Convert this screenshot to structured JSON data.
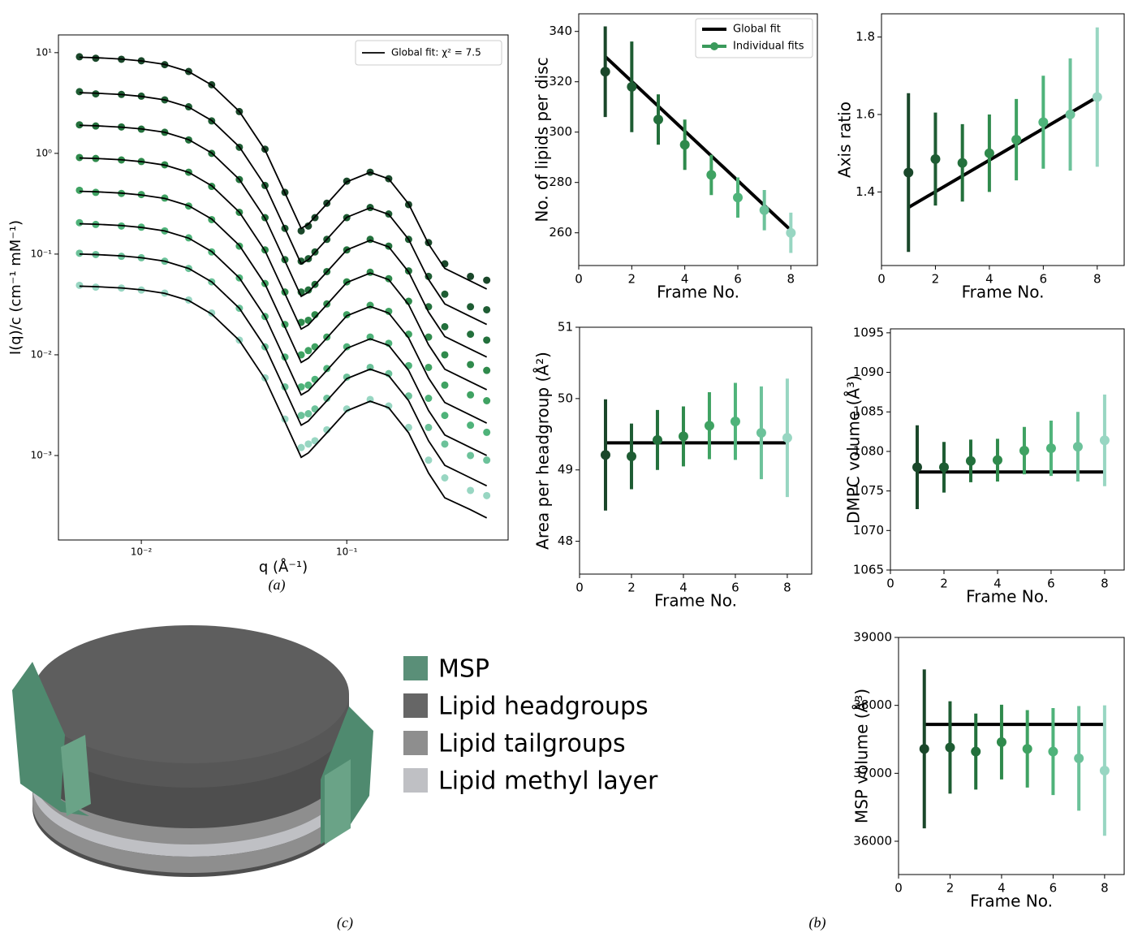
{
  "chart_data": [
    {
      "type": "saxs",
      "xlabel": "q (Å⁻¹)",
      "ylabel": "I(q)/c (cm⁻¹ mM⁻¹)",
      "xscale": "log",
      "yscale": "log",
      "xlim": [
        0.00395,
        0.61
      ],
      "ylim": [
        0.000145,
        15
      ],
      "xticks": [
        {
          "value": 0.01,
          "label": "10⁻²"
        },
        {
          "value": 0.1,
          "label": "10⁻¹"
        }
      ],
      "yticks": [
        {
          "value": 10,
          "label": "10¹"
        },
        {
          "value": 1,
          "label": "10⁰"
        },
        {
          "value": 0.1,
          "label": "10⁻¹"
        },
        {
          "value": 0.01,
          "label": "10⁻²"
        },
        {
          "value": 0.001,
          "label": "10⁻³"
        }
      ],
      "x": [
        0.005,
        0.006,
        0.008,
        0.01,
        0.013,
        0.017,
        0.022,
        0.03,
        0.04,
        0.05,
        0.06,
        0.065,
        0.07,
        0.08,
        0.1,
        0.13,
        0.16,
        0.2,
        0.25,
        0.3,
        0.4,
        0.48
      ],
      "series": [
        {
          "color": "#1a472a",
          "values": [
            9.1,
            8.8,
            8.6,
            8.3,
            7.6,
            6.5,
            4.8,
            2.6,
            1.1,
            0.41,
            0.17,
            0.19,
            0.23,
            0.32,
            0.53,
            0.65,
            0.56,
            0.31,
            0.13,
            0.08,
            0.06,
            0.055
          ]
        },
        {
          "color": "#1e5c33",
          "values": [
            4.1,
            3.9,
            3.85,
            3.7,
            3.4,
            2.9,
            2.1,
            1.15,
            0.48,
            0.18,
            0.085,
            0.09,
            0.105,
            0.14,
            0.23,
            0.29,
            0.25,
            0.14,
            0.06,
            0.04,
            0.03,
            0.028
          ]
        },
        {
          "color": "#23703c",
          "values": [
            1.92,
            1.87,
            1.83,
            1.74,
            1.62,
            1.36,
            1.0,
            0.55,
            0.23,
            0.088,
            0.042,
            0.044,
            0.05,
            0.067,
            0.11,
            0.14,
            0.12,
            0.068,
            0.03,
            0.019,
            0.016,
            0.014
          ]
        },
        {
          "color": "#2f8a4c",
          "values": [
            0.91,
            0.89,
            0.86,
            0.83,
            0.77,
            0.65,
            0.47,
            0.26,
            0.11,
            0.042,
            0.021,
            0.022,
            0.025,
            0.032,
            0.053,
            0.066,
            0.057,
            0.034,
            0.015,
            0.01,
            0.008,
            0.007
          ]
        },
        {
          "color": "#3fa262",
          "values": [
            0.43,
            0.41,
            0.4,
            0.39,
            0.36,
            0.3,
            0.22,
            0.12,
            0.051,
            0.02,
            0.01,
            0.011,
            0.012,
            0.015,
            0.025,
            0.031,
            0.027,
            0.016,
            0.0075,
            0.005,
            0.004,
            0.0035
          ]
        },
        {
          "color": "#4fb37a",
          "values": [
            0.205,
            0.197,
            0.19,
            0.185,
            0.17,
            0.145,
            0.105,
            0.058,
            0.024,
            0.0095,
            0.0048,
            0.005,
            0.0057,
            0.0073,
            0.012,
            0.015,
            0.013,
            0.0078,
            0.0037,
            0.0025,
            0.002,
            0.0017
          ]
        },
        {
          "color": "#6cc29a",
          "values": [
            0.102,
            0.099,
            0.095,
            0.092,
            0.085,
            0.072,
            0.053,
            0.029,
            0.012,
            0.0048,
            0.0025,
            0.0026,
            0.0029,
            0.0037,
            0.006,
            0.0075,
            0.0065,
            0.0039,
            0.0019,
            0.0013,
            0.001,
            0.0009
          ]
        },
        {
          "color": "#98d6c2",
          "values": [
            0.049,
            0.047,
            0.046,
            0.044,
            0.041,
            0.035,
            0.026,
            0.014,
            0.0059,
            0.0023,
            0.0012,
            0.0013,
            0.0014,
            0.0018,
            0.0029,
            0.0036,
            0.0031,
            0.0019,
            0.0009,
            0.0006,
            0.00045,
            0.0004
          ]
        }
      ],
      "fits": {
        "name": "Global fit: χ² = 7.5",
        "color": "#000000",
        "series": [
          [
            9,
            8.91,
            8.64,
            8.28,
            7.65,
            6.48,
            4.77,
            2.61,
            1.08,
            0.405,
            0.18,
            0.198,
            0.234,
            0.315,
            0.522,
            0.648,
            0.558,
            0.315,
            0.126,
            0.072,
            0.054,
            0.045
          ],
          [
            4,
            3.96,
            3.84,
            3.68,
            3.4,
            2.88,
            2.12,
            1.16,
            0.48,
            0.18,
            0.08,
            0.088,
            0.104,
            0.14,
            0.232,
            0.288,
            0.248,
            0.14,
            0.056,
            0.032,
            0.024,
            0.02
          ],
          [
            1.9,
            1.88,
            1.82,
            1.75,
            1.62,
            1.37,
            1.01,
            0.551,
            0.228,
            0.0855,
            0.038,
            0.0418,
            0.0494,
            0.0665,
            0.11,
            0.137,
            0.118,
            0.0665,
            0.0266,
            0.0152,
            0.0114,
            0.0095
          ],
          [
            0.9,
            0.891,
            0.864,
            0.828,
            0.765,
            0.648,
            0.477,
            0.261,
            0.108,
            0.0405,
            0.018,
            0.0198,
            0.0234,
            0.0315,
            0.0522,
            0.0648,
            0.0558,
            0.0315,
            0.0126,
            0.0072,
            0.0054,
            0.0045
          ],
          [
            0.42,
            0.416,
            0.403,
            0.386,
            0.357,
            0.302,
            0.223,
            0.122,
            0.0504,
            0.0189,
            0.0084,
            0.00924,
            0.0109,
            0.0147,
            0.0244,
            0.0302,
            0.026,
            0.0147,
            0.00588,
            0.00336,
            0.00252,
            0.0021
          ],
          [
            0.2,
            0.198,
            0.192,
            0.184,
            0.17,
            0.144,
            0.106,
            0.058,
            0.024,
            0.009,
            0.004,
            0.0044,
            0.0052,
            0.007,
            0.0116,
            0.0144,
            0.0124,
            0.007,
            0.0028,
            0.0016,
            0.0012,
            0.001
          ],
          [
            0.1,
            0.099,
            0.096,
            0.092,
            0.085,
            0.072,
            0.053,
            0.029,
            0.012,
            0.0045,
            0.002,
            0.0022,
            0.0026,
            0.0035,
            0.0058,
            0.0072,
            0.0062,
            0.0035,
            0.0014,
            0.0008,
            0.0006,
            0.0005
          ],
          [
            0.048,
            0.0475,
            0.0461,
            0.0442,
            0.0408,
            0.0346,
            0.0254,
            0.0139,
            0.00576,
            0.00216,
            0.00096,
            0.00106,
            0.00125,
            0.00168,
            0.00278,
            0.00346,
            0.00298,
            0.00168,
            0.00067,
            0.00038,
            0.00029,
            0.00024
          ]
        ]
      }
    },
    {
      "type": "errorbar",
      "xlabel": "Frame No.",
      "ylabel": "No. of lipids per disc",
      "xlim": [
        0,
        9
      ],
      "ylim": [
        247,
        347
      ],
      "xticks": [
        0,
        2,
        4,
        6,
        8
      ],
      "yticks": [
        260,
        280,
        300,
        320,
        340
      ],
      "x": [
        1,
        2,
        3,
        4,
        5,
        6,
        7,
        8
      ],
      "values": [
        324,
        318,
        305,
        295,
        283,
        274,
        269,
        260
      ],
      "errors": [
        18,
        18,
        10,
        10,
        8,
        8,
        8,
        8
      ],
      "colors": [
        "#1a472a",
        "#1e5c33",
        "#23703c",
        "#2f8a4c",
        "#3fa262",
        "#4fb37a",
        "#6cc29a",
        "#98d6c2"
      ],
      "fit": {
        "name": "Global fit",
        "color": "#000000",
        "x": [
          1,
          8
        ],
        "values": [
          330,
          261
        ]
      },
      "points_name": "Individual fits",
      "legend_color": "#3a9a5b",
      "legend": "upper right"
    },
    {
      "type": "errorbar",
      "xlabel": "Frame No.",
      "ylabel": "Axis ratio",
      "xlim": [
        0,
        9
      ],
      "ylim": [
        1.21,
        1.86
      ],
      "xticks": [
        0,
        2,
        4,
        6,
        8
      ],
      "yticks": [
        1.4,
        1.6,
        1.8
      ],
      "x": [
        1,
        2,
        3,
        4,
        5,
        6,
        7,
        8
      ],
      "values": [
        1.45,
        1.485,
        1.475,
        1.5,
        1.535,
        1.58,
        1.6,
        1.645
      ],
      "errors": [
        0.205,
        0.12,
        0.1,
        0.1,
        0.105,
        0.12,
        0.145,
        0.18
      ],
      "colors": [
        "#1a472a",
        "#1e5c33",
        "#23703c",
        "#2f8a4c",
        "#3fa262",
        "#4fb37a",
        "#6cc29a",
        "#98d6c2"
      ],
      "fit": {
        "color": "#000000",
        "x": [
          1,
          8
        ],
        "values": [
          1.36,
          1.645
        ]
      }
    },
    {
      "type": "errorbar",
      "xlabel": "Frame No.",
      "ylabel": "Area per headgroup (Å²)",
      "xlim": [
        0,
        8.94
      ],
      "ylim": [
        47.54,
        51
      ],
      "xticks": [
        0,
        2,
        4,
        6,
        8
      ],
      "yticks": [
        48,
        49,
        50,
        51
      ],
      "x": [
        1,
        2,
        3,
        4,
        5,
        6,
        7,
        8
      ],
      "values": [
        49.21,
        49.19,
        49.42,
        49.47,
        49.62,
        49.68,
        49.52,
        49.45
      ],
      "errors": [
        0.78,
        0.46,
        0.42,
        0.42,
        0.47,
        0.54,
        0.65,
        0.83
      ],
      "colors": [
        "#1a472a",
        "#1e5c33",
        "#23703c",
        "#2f8a4c",
        "#3fa262",
        "#4fb37a",
        "#6cc29a",
        "#98d6c2"
      ],
      "fit": {
        "color": "#000000",
        "x": [
          1,
          8
        ],
        "values": [
          49.38,
          49.38
        ]
      }
    },
    {
      "type": "errorbar",
      "xlabel": "Frame No.",
      "ylabel": "DMPC volume (Å³)",
      "xlim": [
        0,
        8.73
      ],
      "ylim": [
        1065,
        1095.5
      ],
      "xticks": [
        0,
        2,
        4,
        6,
        8
      ],
      "yticks": [
        1065,
        1070,
        1075,
        1080,
        1085,
        1090,
        1095
      ],
      "x": [
        1,
        2,
        3,
        4,
        5,
        6,
        7,
        8
      ],
      "values": [
        1078,
        1078,
        1078.8,
        1078.9,
        1080.1,
        1080.4,
        1080.6,
        1081.4
      ],
      "errors": [
        5.3,
        3.2,
        2.7,
        2.7,
        3,
        3.5,
        4.4,
        5.8
      ],
      "colors": [
        "#1a472a",
        "#1e5c33",
        "#23703c",
        "#2f8a4c",
        "#3fa262",
        "#4fb37a",
        "#6cc29a",
        "#98d6c2"
      ],
      "fit": {
        "color": "#000000",
        "x": [
          1,
          8
        ],
        "values": [
          1077.4,
          1077.4
        ]
      }
    },
    {
      "type": "errorbar",
      "xlabel": "Frame No.",
      "ylabel": "MSP volume (Å³)",
      "xlim": [
        0,
        8.76
      ],
      "ylim": [
        35510,
        39000
      ],
      "xticks": [
        0,
        2,
        4,
        6,
        8
      ],
      "yticks": [
        36000,
        37000,
        38000,
        39000
      ],
      "x": [
        1,
        2,
        3,
        4,
        5,
        6,
        7,
        8
      ],
      "values": [
        37360,
        37380,
        37320,
        37460,
        37360,
        37320,
        37220,
        37040
      ],
      "errors": [
        1170,
        680,
        560,
        550,
        570,
        640,
        770,
        960
      ],
      "colors": [
        "#1a472a",
        "#1e5c33",
        "#23703c",
        "#2f8a4c",
        "#3fa262",
        "#4fb37a",
        "#6cc29a",
        "#98d6c2"
      ],
      "fit": {
        "color": "#000000",
        "x": [
          1,
          8
        ],
        "values": [
          37720,
          37720
        ]
      }
    }
  ],
  "diagram": {
    "legend": [
      {
        "label": "MSP",
        "color": "#5a8f78"
      },
      {
        "label": "Lipid headgroups",
        "color": "#666666"
      },
      {
        "label": "Lipid tailgroups",
        "color": "#8e8e8e"
      },
      {
        "label": "Lipid methyl layer",
        "color": "#bfc0c4"
      }
    ]
  },
  "captions": {
    "a": "(a)",
    "b": "(b)",
    "c": "(c)"
  }
}
